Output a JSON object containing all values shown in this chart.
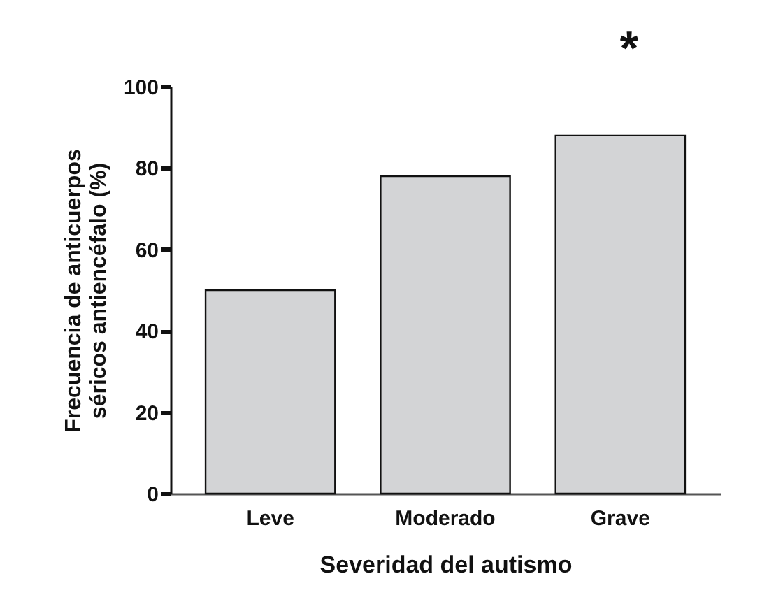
{
  "chart_data": {
    "type": "bar",
    "xlabel": "Severidad del autismo",
    "ylabel": "Frecuencia de anticuerpos\nséricos antiencéfalo (%)",
    "categories": [
      "Leve",
      "Moderado",
      "Grave"
    ],
    "values": [
      50,
      78,
      88
    ],
    "color": "#d3d4d6",
    "ylim": [
      0,
      100
    ],
    "yticks": [
      0,
      20,
      40,
      60,
      80,
      100
    ],
    "grid": false,
    "annotations": [
      "*"
    ]
  }
}
